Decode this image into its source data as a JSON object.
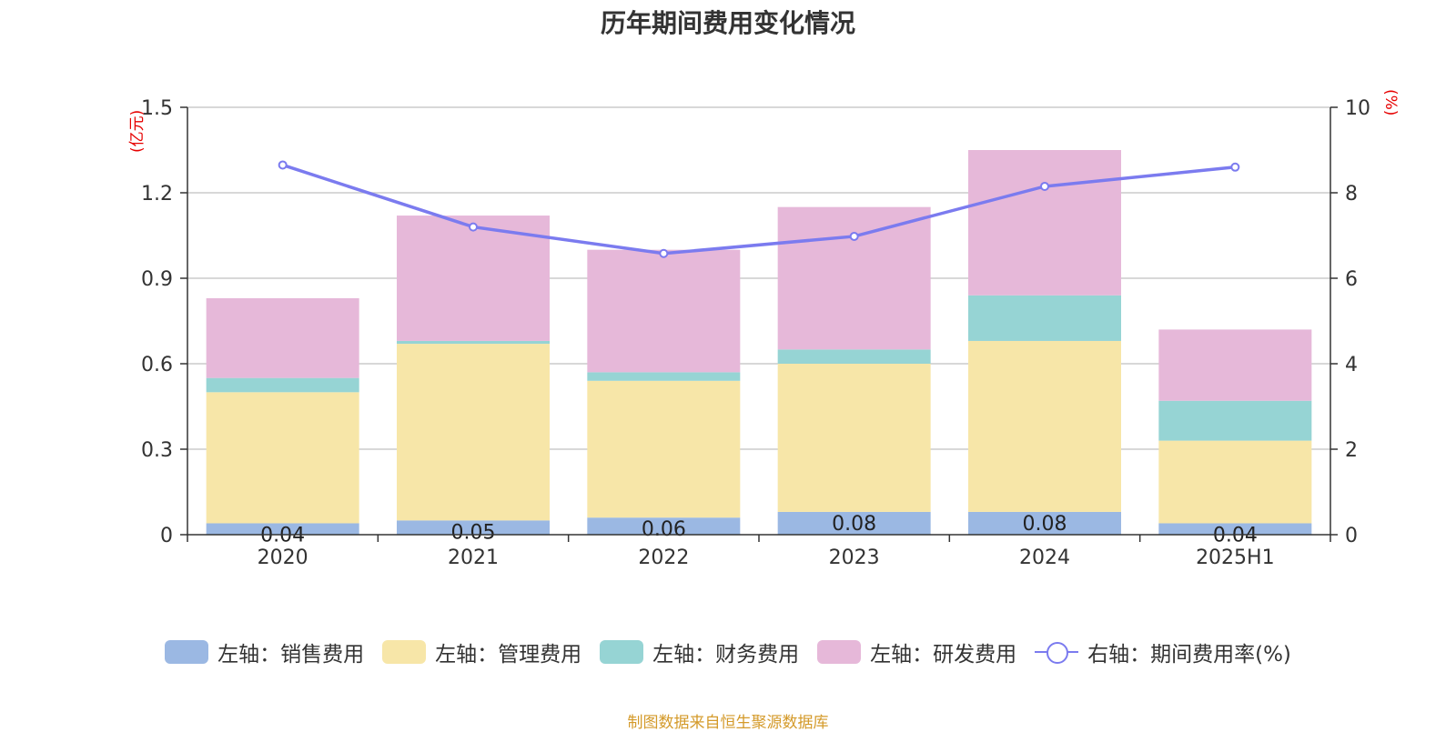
{
  "title": "历年期间费用变化情况",
  "left_unit": "(亿元)",
  "right_unit": "(%)",
  "source": "制图数据来自恒生聚源数据库",
  "colors": {
    "sales": "#9bb8e3",
    "admin": "#f7e6a8",
    "finance": "#96d4d4",
    "rnd": "#e6b8d9",
    "rate_line": "#7b7bef"
  },
  "legend": [
    {
      "label": "左轴：销售费用",
      "type": "bar",
      "color": "#9bb8e3"
    },
    {
      "label": "左轴：管理费用",
      "type": "bar",
      "color": "#f7e6a8"
    },
    {
      "label": "左轴：财务费用",
      "type": "bar",
      "color": "#96d4d4"
    },
    {
      "label": "左轴：研发费用",
      "type": "bar",
      "color": "#e6b8d9"
    },
    {
      "label": "右轴：期间费用率(%)",
      "type": "line",
      "color": "#7b7bef"
    }
  ],
  "chart_data": {
    "type": "bar",
    "stacked": true,
    "categories": [
      "2020",
      "2021",
      "2022",
      "2023",
      "2024",
      "2025H1"
    ],
    "series": [
      {
        "name": "左轴：销售费用",
        "axis": "left",
        "values": [
          0.04,
          0.05,
          0.06,
          0.08,
          0.08,
          0.04
        ],
        "labels": [
          "0.04",
          "0.05",
          "0.06",
          "0.08",
          "0.08",
          "0.04"
        ]
      },
      {
        "name": "左轴：管理费用",
        "axis": "left",
        "values": [
          0.46,
          0.62,
          0.48,
          0.52,
          0.6,
          0.29
        ]
      },
      {
        "name": "左轴：财务费用",
        "axis": "left",
        "values": [
          0.05,
          0.01,
          0.03,
          0.05,
          0.16,
          0.14
        ]
      },
      {
        "name": "左轴：研发费用",
        "axis": "left",
        "values": [
          0.28,
          0.44,
          0.43,
          0.5,
          0.51,
          0.25
        ]
      },
      {
        "name": "右轴：期间费用率(%)",
        "axis": "right",
        "type": "line",
        "values": [
          8.65,
          7.2,
          6.58,
          6.98,
          8.15,
          8.6
        ]
      }
    ],
    "y_left": {
      "min": 0,
      "max": 1.5,
      "ticks": [
        "0",
        "0.3",
        "0.6",
        "0.9",
        "1.2",
        "1.5"
      ]
    },
    "y_right": {
      "min": 0,
      "max": 10,
      "ticks": [
        "0",
        "2",
        "4",
        "6",
        "8",
        "10"
      ]
    },
    "grid": true,
    "legend_position": "bottom"
  }
}
